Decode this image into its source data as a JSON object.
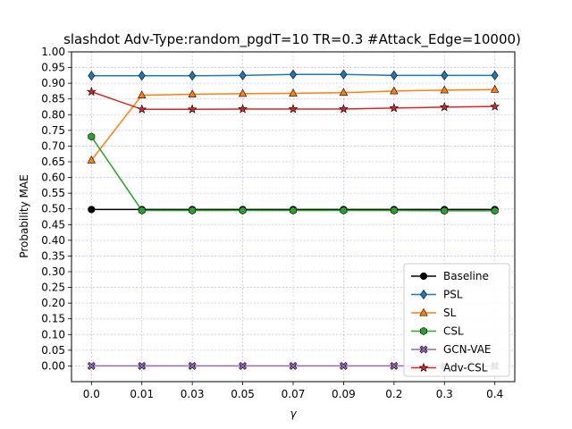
{
  "chart_data": {
    "type": "line",
    "title": "slashdot Adv-Type:random_pgdT=10 TR=0.3 #Attack_Edge=10000)",
    "xlabel": "γ",
    "ylabel": "Probability MAE",
    "categories": [
      "0.0",
      "0.01",
      "0.03",
      "0.05",
      "0.07",
      "0.09",
      "0.2",
      "0.3",
      "0.4"
    ],
    "ylim": [
      -0.05,
      1.0
    ],
    "yticks": [
      "0.00",
      "0.05",
      "0.10",
      "0.15",
      "0.20",
      "0.25",
      "0.30",
      "0.35",
      "0.40",
      "0.45",
      "0.50",
      "0.55",
      "0.60",
      "0.65",
      "0.70",
      "0.75",
      "0.80",
      "0.85",
      "0.90",
      "0.95",
      "1.00"
    ],
    "grid": true,
    "grid_color": "#0000ff",
    "legend_position": "lower-right",
    "series": [
      {
        "name": "Baseline",
        "color": "#000000",
        "marker": "circle",
        "values": [
          0.498,
          0.498,
          0.498,
          0.498,
          0.498,
          0.498,
          0.498,
          0.498,
          0.498
        ]
      },
      {
        "name": "PSL",
        "color": "#1f77b4",
        "marker": "diamond",
        "values": [
          0.924,
          0.924,
          0.924,
          0.925,
          0.928,
          0.928,
          0.925,
          0.925,
          0.925
        ]
      },
      {
        "name": "SL",
        "color": "#ff7f0e",
        "marker": "triangle",
        "values": [
          0.655,
          0.862,
          0.865,
          0.867,
          0.868,
          0.87,
          0.875,
          0.878,
          0.88
        ]
      },
      {
        "name": "CSL",
        "color": "#2ca02c",
        "marker": "hexagon",
        "values": [
          0.73,
          0.495,
          0.495,
          0.495,
          0.495,
          0.495,
          0.495,
          0.494,
          0.494
        ]
      },
      {
        "name": "GCN-VAE",
        "color": "#9467bd",
        "marker": "x",
        "values": [
          0.0,
          0.0,
          0.0,
          0.0,
          0.0,
          0.0,
          0.0,
          0.0,
          0.0
        ]
      },
      {
        "name": "Adv-CSL",
        "color": "#d62728",
        "marker": "star",
        "values": [
          0.873,
          0.817,
          0.817,
          0.818,
          0.818,
          0.818,
          0.821,
          0.824,
          0.826
        ]
      }
    ]
  }
}
